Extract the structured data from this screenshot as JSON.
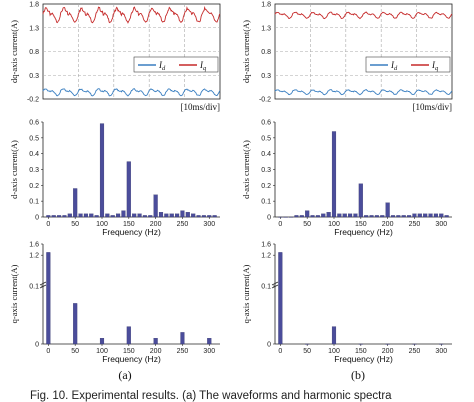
{
  "caption": "Fig. 10. Experimental results. (a) The waveforms and harmonic spectra",
  "colors": {
    "id": "#3a7fc1",
    "iq": "#c62a2a",
    "bar": "#4b4d9b"
  },
  "chart_data": [
    {
      "type": "line",
      "panel": "a",
      "ylabel": "dq-axis current(A)",
      "yticks": [
        "1.8",
        "1.3",
        "0.8",
        "0.3",
        "-0.2"
      ],
      "ylim": [
        -0.2,
        1.8
      ],
      "time_div": "[10ms/div]",
      "series": [
        {
          "name": "I_d",
          "legend_main": "I",
          "legend_sub": "d",
          "mean": -0.05,
          "amp": 0.05,
          "ripple_hz": 100
        },
        {
          "name": "I_q",
          "legend_main": "I",
          "legend_sub": "q",
          "mean": 1.56,
          "amp": 0.09,
          "ripple_hz": 100
        }
      ]
    },
    {
      "type": "line",
      "panel": "b",
      "ylabel": "dq-axis current(A)",
      "yticks": [
        "1.8",
        "1.3",
        "0.8",
        "0.3",
        "-0.2"
      ],
      "ylim": [
        -0.2,
        1.8
      ],
      "time_div": "[10ms/div]",
      "series": [
        {
          "name": "I_d",
          "legend_main": "I",
          "legend_sub": "d",
          "mean": -0.05,
          "amp": 0.035,
          "ripple_hz": 100
        },
        {
          "name": "I_q",
          "legend_main": "I",
          "legend_sub": "q",
          "mean": 1.57,
          "amp": 0.045,
          "ripple_hz": 100
        }
      ]
    },
    {
      "type": "bar",
      "panel": "a",
      "ylabel": "d-axis current(A)",
      "xlabel": "Frequency (Hz)",
      "xticks": [
        0,
        50,
        100,
        150,
        200,
        250,
        300
      ],
      "yticks": [
        0,
        0.1,
        0.2,
        0.3,
        0.4,
        0.5,
        0.6
      ],
      "xlim": [
        -10,
        320
      ],
      "ylim": [
        0,
        0.6
      ],
      "x": [
        0,
        10,
        20,
        30,
        40,
        50,
        60,
        70,
        80,
        90,
        100,
        110,
        120,
        130,
        140,
        150,
        160,
        170,
        180,
        190,
        200,
        210,
        220,
        230,
        240,
        250,
        260,
        270,
        280,
        290,
        300,
        310
      ],
      "values": [
        0.01,
        0.01,
        0.01,
        0.01,
        0.02,
        0.18,
        0.02,
        0.02,
        0.02,
        0.01,
        0.59,
        0.02,
        0.01,
        0.02,
        0.04,
        0.35,
        0.02,
        0.02,
        0.01,
        0.01,
        0.14,
        0.03,
        0.02,
        0.02,
        0.02,
        0.04,
        0.03,
        0.02,
        0.01,
        0.01,
        0.01,
        0.01
      ]
    },
    {
      "type": "bar",
      "panel": "b",
      "ylabel": "d-axis current(A)",
      "xlabel": "Frequency (Hz)",
      "xticks": [
        0,
        50,
        100,
        150,
        200,
        250,
        300
      ],
      "yticks": [
        0,
        0.1,
        0.2,
        0.3,
        0.4,
        0.5,
        0.6
      ],
      "xlim": [
        -10,
        320
      ],
      "ylim": [
        0,
        0.6
      ],
      "x": [
        0,
        10,
        20,
        30,
        40,
        50,
        60,
        70,
        80,
        90,
        100,
        110,
        120,
        130,
        140,
        150,
        160,
        170,
        180,
        190,
        200,
        210,
        220,
        230,
        240,
        250,
        260,
        270,
        280,
        290,
        300,
        310
      ],
      "values": [
        0.0,
        0.0,
        0.0,
        0.01,
        0.01,
        0.04,
        0.01,
        0.01,
        0.02,
        0.03,
        0.54,
        0.02,
        0.02,
        0.02,
        0.02,
        0.21,
        0.01,
        0.01,
        0.01,
        0.01,
        0.09,
        0.01,
        0.01,
        0.01,
        0.01,
        0.02,
        0.02,
        0.02,
        0.02,
        0.02,
        0.02,
        0.01
      ]
    },
    {
      "type": "bar",
      "panel": "a",
      "ylabel": "q-axis current(A)",
      "xlabel": "Frequency (Hz)",
      "xticks": [
        0,
        50,
        100,
        150,
        200,
        250,
        300
      ],
      "yticks": [
        "0",
        "0.1",
        "1.2",
        "1.6"
      ],
      "axis_break": true,
      "xlim": [
        -10,
        320
      ],
      "x": [
        0,
        50,
        100,
        150,
        200,
        250,
        300
      ],
      "values": [
        1.3,
        0.07,
        0.01,
        0.03,
        0.01,
        0.02,
        0.01
      ]
    },
    {
      "type": "bar",
      "panel": "b",
      "ylabel": "q-axis current(A)",
      "xlabel": "Frequency (Hz)",
      "xticks": [
        0,
        50,
        100,
        150,
        200,
        250,
        300
      ],
      "yticks": [
        "0",
        "0.1",
        "1.2",
        "1.6"
      ],
      "axis_break": true,
      "xlim": [
        -10,
        320
      ],
      "x": [
        0,
        50,
        100,
        150,
        200,
        250,
        300
      ],
      "values": [
        1.3,
        0.0,
        0.03,
        0.0,
        0.0,
        0.0,
        0.0
      ]
    }
  ],
  "labels": {
    "a": "(a)",
    "b": "(b)"
  }
}
